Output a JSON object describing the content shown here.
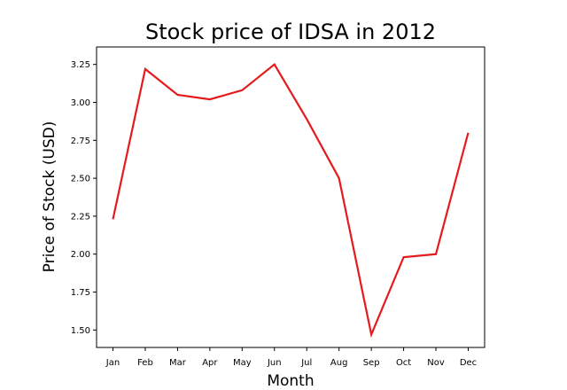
{
  "chart_data": {
    "type": "line",
    "title": "Stock price of IDSA in 2012",
    "xlabel": "Month",
    "ylabel": "Price of Stock (USD)",
    "categories": [
      "Jan",
      "Feb",
      "Mar",
      "Apr",
      "May",
      "Jun",
      "Jul",
      "Aug",
      "Sep",
      "Oct",
      "Nov",
      "Dec"
    ],
    "series": [
      {
        "values": [
          2.23,
          3.22,
          3.05,
          3.02,
          3.08,
          3.25,
          2.89,
          2.5,
          1.47,
          1.98,
          2.0,
          2.8
        ],
        "color": "#e41a1c"
      }
    ],
    "ylim": [
      1.385,
      3.365
    ],
    "yticks": [
      1.5,
      1.75,
      2.0,
      2.25,
      2.5,
      2.75,
      3.0,
      3.25
    ],
    "ytick_labels": [
      "1.50",
      "1.75",
      "2.00",
      "2.25",
      "2.50",
      "2.75",
      "3.00",
      "3.25"
    ],
    "grid": false,
    "legend": "none"
  }
}
